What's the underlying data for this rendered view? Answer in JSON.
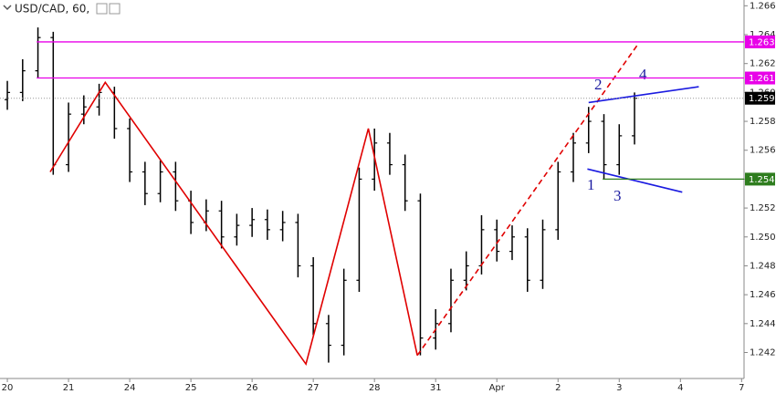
{
  "chart_data": {
    "type": "ohlc",
    "title": "USD/CAD, 60,",
    "x": [
      0,
      0.25,
      0.5,
      0.75,
      1,
      1.25,
      1.5,
      1.75,
      2,
      2.25,
      2.5,
      2.75,
      3,
      3.25,
      3.5,
      3.75,
      4,
      4.25,
      4.5,
      4.75,
      5,
      5.25,
      5.5,
      5.75,
      6,
      6.25,
      6.5,
      6.75,
      7,
      7.25,
      7.5,
      7.75,
      8,
      8.25,
      8.5,
      8.75,
      9,
      9.25,
      9.5,
      9.75,
      10,
      10.25
    ],
    "open": [
      1.2595,
      1.26,
      1.2615,
      1.2638,
      1.255,
      1.2585,
      1.259,
      1.26,
      1.2575,
      1.2545,
      1.253,
      1.2545,
      1.2525,
      1.251,
      1.2518,
      1.25,
      1.2508,
      1.2512,
      1.2505,
      1.251,
      1.248,
      1.244,
      1.2425,
      1.247,
      1.254,
      1.2565,
      1.255,
      1.2525,
      1.243,
      1.244,
      1.247,
      1.248,
      1.2505,
      1.249,
      1.25,
      1.247,
      1.2505,
      1.2545,
      1.2565,
      1.258,
      1.255,
      1.257
    ],
    "high": [
      1.2608,
      1.2623,
      1.2645,
      1.2642,
      1.2593,
      1.2598,
      1.2606,
      1.2604,
      1.2582,
      1.2552,
      1.2553,
      1.2552,
      1.2532,
      1.2526,
      1.2525,
      1.2516,
      1.252,
      1.2519,
      1.2518,
      1.2516,
      1.2486,
      1.2446,
      1.2478,
      1.2548,
      1.2575,
      1.2572,
      1.2557,
      1.253,
      1.245,
      1.2478,
      1.249,
      1.2515,
      1.2512,
      1.2508,
      1.2506,
      1.2512,
      1.2552,
      1.2572,
      1.259,
      1.2585,
      1.2578,
      1.26
    ],
    "low": [
      1.2588,
      1.2594,
      1.261,
      1.2543,
      1.2545,
      1.2578,
      1.2584,
      1.2568,
      1.2538,
      1.2522,
      1.2524,
      1.2518,
      1.2502,
      1.2504,
      1.2492,
      1.2494,
      1.25,
      1.2498,
      1.2497,
      1.2472,
      1.2432,
      1.2413,
      1.2418,
      1.2462,
      1.2532,
      1.2543,
      1.2518,
      1.2418,
      1.2422,
      1.2434,
      1.2463,
      1.2474,
      1.2483,
      1.2484,
      1.2462,
      1.2464,
      1.2498,
      1.2538,
      1.2558,
      1.254,
      1.2543,
      1.2564
    ],
    "close": [
      1.26,
      1.2615,
      1.2638,
      1.255,
      1.2585,
      1.259,
      1.26,
      1.2575,
      1.2545,
      1.253,
      1.2545,
      1.2525,
      1.251,
      1.2518,
      1.25,
      1.2508,
      1.2512,
      1.2505,
      1.251,
      1.248,
      1.244,
      1.2425,
      1.247,
      1.254,
      1.2565,
      1.255,
      1.2525,
      1.243,
      1.244,
      1.247,
      1.248,
      1.2505,
      1.249,
      1.25,
      1.247,
      1.2505,
      1.2545,
      1.2565,
      1.258,
      1.255,
      1.257,
      1.2596
    ],
    "bar_color": "#000000",
    "xlim": [
      -0.12,
      12.04
    ],
    "xticks": [
      {
        "value": 0,
        "label": "20"
      },
      {
        "value": 1,
        "label": "21"
      },
      {
        "value": 2,
        "label": "24"
      },
      {
        "value": 3,
        "label": "25"
      },
      {
        "value": 4,
        "label": "26"
      },
      {
        "value": 5,
        "label": "27"
      },
      {
        "value": 6,
        "label": "28"
      },
      {
        "value": 7,
        "label": "31"
      },
      {
        "value": 8,
        "label": "Apr"
      },
      {
        "value": 9,
        "label": "2"
      },
      {
        "value": 10,
        "label": "3"
      },
      {
        "value": 11,
        "label": "4"
      },
      {
        "value": 12,
        "label": "7"
      }
    ],
    "ylim": [
      1.2402,
      1.2664
    ],
    "yticks": [
      {
        "value": 1.242,
        "label": "1.2420"
      },
      {
        "value": 1.244,
        "label": "1.2440"
      },
      {
        "value": 1.246,
        "label": "1.2460"
      },
      {
        "value": 1.248,
        "label": "1.2480"
      },
      {
        "value": 1.25,
        "label": "1.2500"
      },
      {
        "value": 1.252,
        "label": "1.2520"
      },
      {
        "value": 1.254,
        "label": "1.2540"
      },
      {
        "value": 1.256,
        "label": "1.2560"
      },
      {
        "value": 1.258,
        "label": "1.2580"
      },
      {
        "value": 1.26,
        "label": "1.2600"
      },
      {
        "value": 1.262,
        "label": "1.2620"
      },
      {
        "value": 1.264,
        "label": "1.2640"
      },
      {
        "value": 1.266,
        "label": "1.2660"
      }
    ],
    "levels": [
      {
        "value": 1.2635,
        "label": "1.2635",
        "color": "#e800e8",
        "start": 0.48,
        "dashed": false
      },
      {
        "value": 1.261,
        "label": "1.2610",
        "color": "#e800e8",
        "start": 0.48,
        "dashed": false
      },
      {
        "value": 1.2596,
        "label": "1.2596",
        "color": "#000000",
        "start": -0.12,
        "dashed": true
      },
      {
        "value": 1.254,
        "label": "1.2540",
        "color": "#2e7d1e",
        "start": 9.73,
        "dashed": false
      }
    ],
    "trend_lines": [
      {
        "color": "#e00000",
        "dashed": false,
        "x": [
          0.7,
          1.6,
          4.88,
          5.9,
          6.7
        ],
        "y": [
          1.2545,
          1.2607,
          1.2412,
          1.2575,
          1.2418
        ]
      },
      {
        "color": "#e00000",
        "dashed": true,
        "x": [
          6.7,
          10.3
        ],
        "y": [
          1.2418,
          1.2633
        ]
      },
      {
        "color": "#1a1ae0",
        "dashed": false,
        "x": [
          9.5,
          11.3
        ],
        "y": [
          1.2593,
          1.2604
        ]
      },
      {
        "color": "#1a1ae0",
        "dashed": false,
        "x": [
          9.48,
          11.03
        ],
        "y": [
          1.2547,
          1.2531
        ]
      }
    ],
    "wave_labels": [
      "1",
      "2",
      "3",
      "4"
    ]
  }
}
